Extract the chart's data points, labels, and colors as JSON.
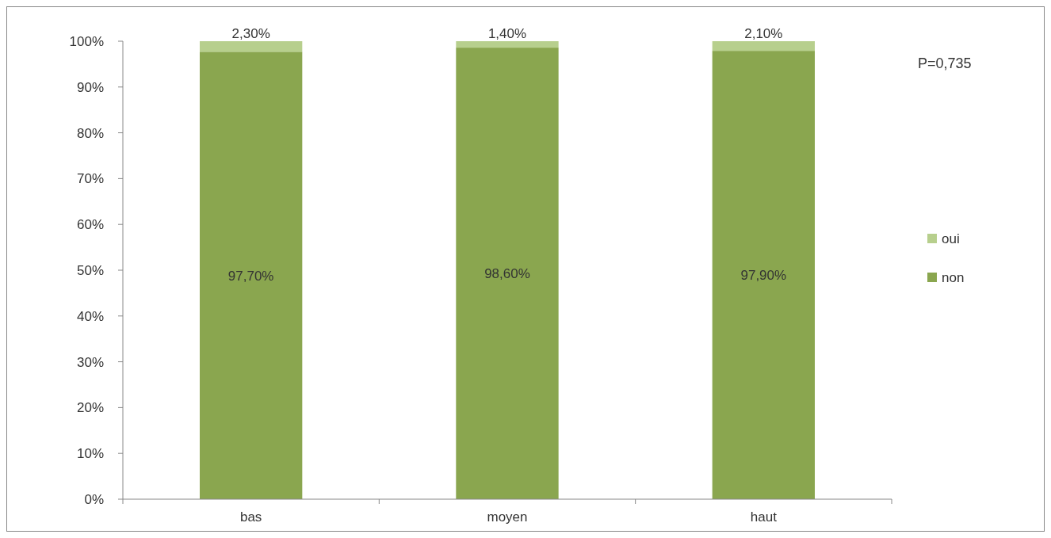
{
  "chart_data": {
    "type": "bar",
    "stacked": true,
    "categories": [
      "bas",
      "moyen",
      "haut"
    ],
    "series": [
      {
        "name": "non",
        "color": "#8aa64f",
        "values": [
          97.7,
          98.6,
          97.9
        ],
        "value_labels": [
          "97,70%",
          "98,60%",
          "97,90%"
        ]
      },
      {
        "name": "oui",
        "color": "#b7cf8d",
        "values": [
          2.3,
          1.4,
          2.1
        ],
        "value_labels": [
          "2,30%",
          "1,40%",
          "2,10%"
        ]
      }
    ],
    "ylim": [
      0,
      100
    ],
    "yticks": [
      {
        "value": 0,
        "label": "0%"
      },
      {
        "value": 10,
        "label": "10%"
      },
      {
        "value": 20,
        "label": "20%"
      },
      {
        "value": 30,
        "label": "30%"
      },
      {
        "value": 40,
        "label": "40%"
      },
      {
        "value": 50,
        "label": "50%"
      },
      {
        "value": 60,
        "label": "60%"
      },
      {
        "value": 70,
        "label": "70%"
      },
      {
        "value": 80,
        "label": "80%"
      },
      {
        "value": 90,
        "label": "90%"
      },
      {
        "value": 100,
        "label": "100%"
      }
    ],
    "legend": "right",
    "grid": false,
    "annotations": [
      "P=0,735"
    ]
  }
}
